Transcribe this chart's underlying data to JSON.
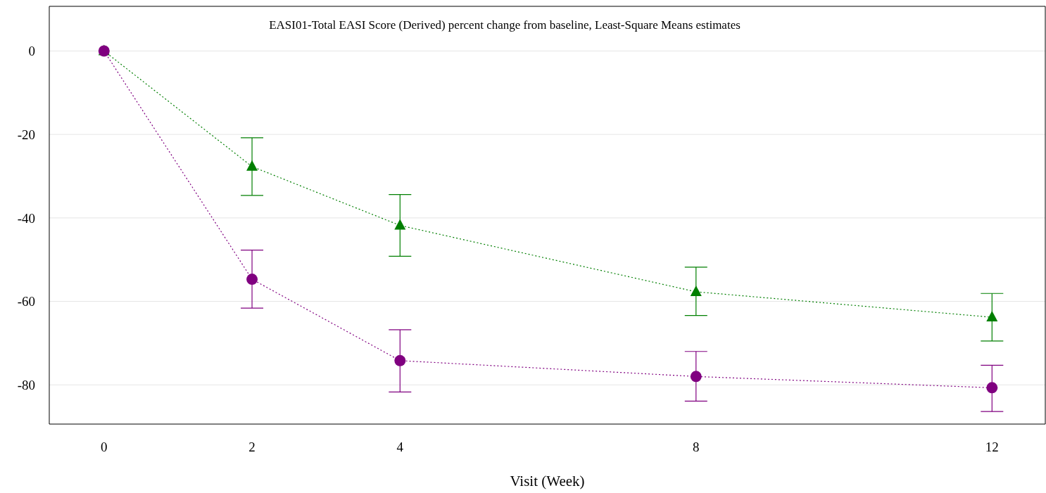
{
  "chart_data": {
    "type": "line",
    "title": "EASI01-Total EASI Score (Derived) percent change from baseline, Least-Square Means estimates",
    "xlabel": "Visit (Week)",
    "x": [
      0,
      2,
      4,
      8,
      12
    ],
    "xlim": [
      -0.74,
      12.72
    ],
    "xticks": [
      0,
      2,
      4,
      8,
      12
    ],
    "ylim": [
      -89.4,
      10.7
    ],
    "yticks": [
      -80,
      -60,
      -40,
      -20,
      0
    ],
    "grid": "y",
    "line_style": "dotted",
    "legend": false,
    "series": [
      {
        "color": "#007f00",
        "marker": "triangle",
        "values": [
          0,
          -27.7,
          -41.8,
          -57.7,
          -63.8
        ],
        "errors": [
          null,
          [
            -34.6,
            -20.8
          ],
          [
            -49.2,
            -34.4
          ],
          [
            -63.4,
            -51.8
          ],
          [
            -69.5,
            -58.1
          ]
        ]
      },
      {
        "color": "#800080",
        "marker": "circle",
        "values": [
          0,
          -54.7,
          -74.2,
          -78.0,
          -80.7
        ],
        "errors": [
          null,
          [
            -61.6,
            -47.7
          ],
          [
            -81.7,
            -66.8
          ],
          [
            -83.9,
            -72.0
          ],
          [
            -86.4,
            -75.3
          ]
        ]
      }
    ]
  }
}
